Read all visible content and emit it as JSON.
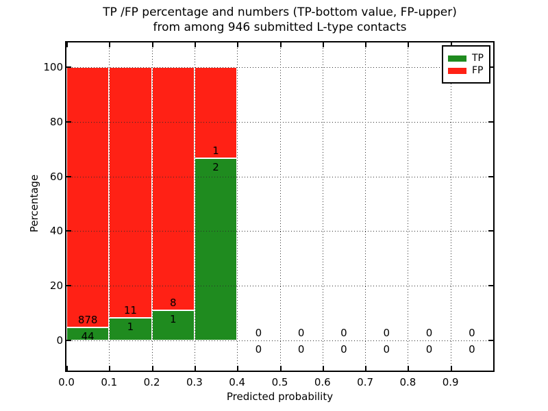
{
  "figure": {
    "title_line1": "TP /FP percentage and numbers (TP-bottom value, FP-upper)",
    "title_line2": "from among 946 submitted L-type contacts",
    "background_color": "#ffffff"
  },
  "chart_data": {
    "type": "bar",
    "stacked": true,
    "title": "TP /FP percentage and numbers (TP-bottom value, FP-upper) from among 946 submitted L-type contacts",
    "xlabel": "Predicted probability",
    "ylabel": "Percentage",
    "xlim": [
      0.0,
      1.0
    ],
    "ylim": [
      -11,
      109
    ],
    "x_tick_labels": [
      "0.0",
      "0.1",
      "0.2",
      "0.3",
      "0.4",
      "0.5",
      "0.6",
      "0.7",
      "0.8",
      "0.9"
    ],
    "x_tick_values": [
      0.0,
      0.1,
      0.2,
      0.3,
      0.4,
      0.5,
      0.6,
      0.7,
      0.8,
      0.9
    ],
    "y_tick_values": [
      0,
      20,
      40,
      60,
      80,
      100
    ],
    "grid": true,
    "grid_linestyle": "dotted",
    "grid_color": "#2a2a2a",
    "bin_width": 0.1,
    "bin_starts": [
      0.0,
      0.1,
      0.2,
      0.3,
      0.4,
      0.5,
      0.6,
      0.7,
      0.8,
      0.9
    ],
    "series": [
      {
        "name": "TP",
        "color": "#1f8b1f",
        "counts": [
          44,
          1,
          1,
          2,
          0,
          0,
          0,
          0,
          0,
          0
        ]
      },
      {
        "name": "FP",
        "color": "#ff2115",
        "counts": [
          878,
          11,
          8,
          1,
          0,
          0,
          0,
          0,
          0,
          0
        ]
      }
    ],
    "tp_percent_of_bin": [
      4.8,
      8.3,
      11.1,
      66.7,
      0,
      0,
      0,
      0,
      0,
      0
    ],
    "fp_percent_of_bin": [
      95.2,
      91.7,
      88.9,
      33.3,
      0,
      0,
      0,
      0,
      0,
      0
    ],
    "bar_total_height_percent": 100,
    "bar_edge_color": "#ffffff",
    "value_label_color": "#000000",
    "legend": {
      "position": "upper right",
      "entries": [
        {
          "label": "TP",
          "color": "#1f8b1f"
        },
        {
          "label": "FP",
          "color": "#ff2115"
        }
      ]
    }
  }
}
